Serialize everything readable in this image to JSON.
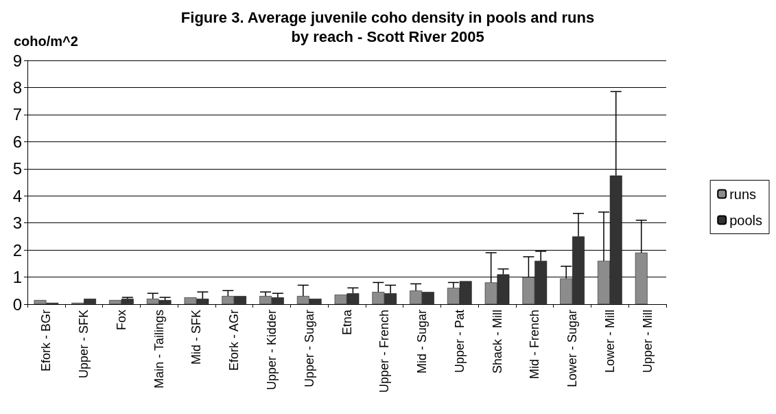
{
  "chart_data": {
    "type": "bar",
    "title": "Figure 3. Average juvenile coho density in pools and runs\nby reach - Scott River 2005",
    "ylabel": "coho/m^2",
    "categories": [
      "Efork - BGr",
      "Upper - SFK",
      "Fox",
      "Main - Tailings",
      "Mid - SFK",
      "Efork - AGr",
      "Upper - Kidder",
      "Upper - Sugar",
      "Etna",
      "Upper - French",
      "Mid - Sugar",
      "Upper - Pat",
      "Shack - Mill",
      "Mid - French",
      "Lower - Sugar",
      "Lower - Mill",
      "Upper - Mill"
    ],
    "series": [
      {
        "name": "runs",
        "color": "#8c8c8c",
        "values": [
          0.15,
          0.05,
          0.15,
          0.2,
          0.25,
          0.3,
          0.3,
          0.3,
          0.35,
          0.45,
          0.5,
          0.6,
          0.8,
          1.0,
          0.95,
          1.6,
          1.9
        ],
        "errors": [
          null,
          null,
          null,
          [
            0.2,
            0.4
          ],
          null,
          [
            0.3,
            0.5
          ],
          [
            0.3,
            0.45
          ],
          [
            0.3,
            0.7
          ],
          null,
          [
            0.45,
            0.8
          ],
          [
            0.5,
            0.75
          ],
          [
            0.6,
            0.8
          ],
          [
            0.8,
            1.9
          ],
          [
            1.0,
            1.75
          ],
          [
            0.95,
            1.4
          ],
          [
            1.6,
            3.4
          ],
          [
            1.9,
            3.1
          ]
        ]
      },
      {
        "name": "pools",
        "color": "#333333",
        "values": [
          0.05,
          0.2,
          0.2,
          0.15,
          0.2,
          0.3,
          0.25,
          0.2,
          0.4,
          0.4,
          0.45,
          0.85,
          1.1,
          1.6,
          2.5,
          4.75,
          null
        ],
        "errors": [
          null,
          null,
          [
            0.2,
            0.25
          ],
          [
            0.15,
            0.25
          ],
          [
            0.2,
            0.45
          ],
          null,
          [
            0.25,
            0.4
          ],
          null,
          [
            0.4,
            0.6
          ],
          [
            0.4,
            0.7
          ],
          null,
          null,
          [
            1.1,
            1.3
          ],
          [
            1.6,
            1.95
          ],
          [
            2.5,
            3.35
          ],
          [
            4.75,
            7.85
          ],
          null
        ]
      }
    ],
    "ylim": [
      0,
      9
    ],
    "yticks": [
      0,
      1,
      2,
      3,
      4,
      5,
      6,
      7,
      8,
      9
    ],
    "grid": "y",
    "legend": "right"
  }
}
